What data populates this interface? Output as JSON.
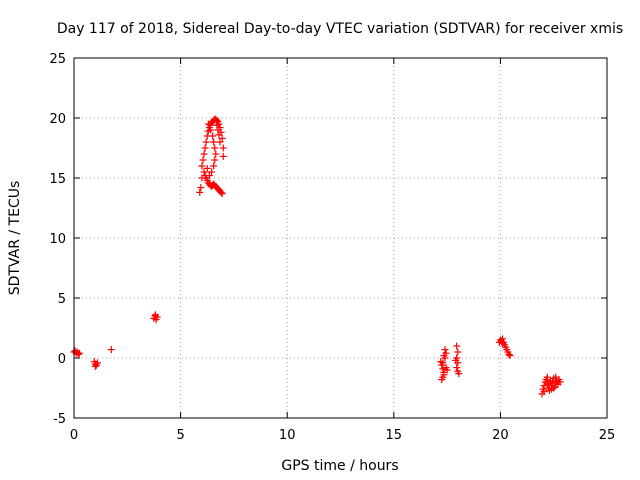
{
  "chart_data": {
    "type": "scatter",
    "title": "Day 117 of 2018, Sidereal Day-to-day VTEC variation (SDTVAR) for receiver xmis",
    "xlabel": "GPS time / hours",
    "ylabel": "SDTVAR / TECUs",
    "xlim": [
      0,
      25
    ],
    "ylim": [
      -5,
      25
    ],
    "xticks": [
      0,
      5,
      10,
      15,
      20,
      25
    ],
    "yticks": [
      -5,
      0,
      5,
      10,
      15,
      20,
      25
    ],
    "grid": true,
    "marker": "+",
    "color": "#ff0000",
    "series": [
      {
        "name": "SDTVAR",
        "points": [
          [
            0.0,
            0.5
          ],
          [
            0.05,
            0.6
          ],
          [
            0.1,
            0.4
          ],
          [
            0.15,
            0.5
          ],
          [
            0.2,
            0.3
          ],
          [
            0.25,
            0.4
          ],
          [
            0.95,
            -0.3
          ],
          [
            1.0,
            -0.5
          ],
          [
            1.05,
            -0.6
          ],
          [
            1.1,
            -0.4
          ],
          [
            1.0,
            -0.7
          ],
          [
            1.75,
            0.7
          ],
          [
            3.75,
            3.3
          ],
          [
            3.8,
            3.5
          ],
          [
            3.85,
            3.2
          ],
          [
            3.9,
            3.4
          ],
          [
            3.82,
            3.6
          ],
          [
            5.9,
            13.8
          ],
          [
            5.95,
            14.2
          ],
          [
            6.0,
            15.0
          ],
          [
            6.0,
            16.0
          ],
          [
            6.05,
            16.5
          ],
          [
            6.1,
            17.0
          ],
          [
            6.15,
            17.5
          ],
          [
            6.2,
            18.0
          ],
          [
            6.25,
            18.5
          ],
          [
            6.3,
            18.9
          ],
          [
            6.35,
            19.2
          ],
          [
            6.4,
            19.4
          ],
          [
            6.45,
            19.6
          ],
          [
            6.5,
            19.7
          ],
          [
            6.55,
            19.8
          ],
          [
            6.6,
            19.9
          ],
          [
            6.65,
            19.9
          ],
          [
            6.7,
            19.8
          ],
          [
            6.75,
            19.7
          ],
          [
            6.8,
            19.5
          ],
          [
            6.85,
            19.2
          ],
          [
            6.9,
            18.8
          ],
          [
            6.95,
            18.3
          ],
          [
            7.0,
            17.5
          ],
          [
            7.0,
            16.8
          ],
          [
            6.1,
            15.5
          ],
          [
            6.15,
            15.2
          ],
          [
            6.2,
            15.0
          ],
          [
            6.25,
            14.8
          ],
          [
            6.3,
            14.6
          ],
          [
            6.35,
            14.5
          ],
          [
            6.4,
            14.4
          ],
          [
            6.45,
            14.3
          ],
          [
            6.5,
            14.4
          ],
          [
            6.55,
            14.5
          ],
          [
            6.6,
            14.4
          ],
          [
            6.65,
            14.3
          ],
          [
            6.7,
            14.2
          ],
          [
            6.75,
            14.1
          ],
          [
            6.8,
            14.0
          ],
          [
            6.85,
            13.9
          ],
          [
            6.9,
            13.8
          ],
          [
            6.95,
            13.7
          ],
          [
            6.3,
            19.5
          ],
          [
            6.4,
            19.0
          ],
          [
            6.5,
            18.5
          ],
          [
            6.55,
            18.0
          ],
          [
            6.6,
            17.5
          ],
          [
            6.65,
            17.0
          ],
          [
            6.6,
            16.5
          ],
          [
            6.55,
            16.0
          ],
          [
            6.45,
            15.5
          ],
          [
            6.35,
            15.2
          ],
          [
            6.25,
            15.8
          ],
          [
            6.7,
            19.4
          ],
          [
            6.75,
            19.0
          ],
          [
            6.8,
            18.6
          ],
          [
            6.85,
            18.0
          ],
          [
            17.2,
            -0.3
          ],
          [
            17.25,
            -0.6
          ],
          [
            17.3,
            -0.9
          ],
          [
            17.35,
            -1.2
          ],
          [
            17.3,
            -1.6
          ],
          [
            17.25,
            -1.8
          ],
          [
            17.4,
            0.0
          ],
          [
            17.45,
            0.4
          ],
          [
            17.4,
            0.7
          ],
          [
            17.35,
            0.2
          ],
          [
            17.3,
            -0.4
          ],
          [
            17.45,
            -0.8
          ],
          [
            17.5,
            -1.0
          ],
          [
            17.35,
            -1.4
          ],
          [
            17.95,
            1.0
          ],
          [
            18.0,
            0.5
          ],
          [
            17.95,
            0.0
          ],
          [
            18.0,
            -0.4
          ],
          [
            17.95,
            -0.8
          ],
          [
            18.0,
            -1.1
          ],
          [
            18.05,
            -1.3
          ],
          [
            17.9,
            -0.2
          ],
          [
            19.95,
            1.3
          ],
          [
            20.0,
            1.5
          ],
          [
            20.05,
            1.4
          ],
          [
            20.1,
            1.2
          ],
          [
            20.15,
            1.3
          ],
          [
            20.2,
            1.1
          ],
          [
            20.25,
            0.9
          ],
          [
            20.3,
            0.7
          ],
          [
            20.35,
            0.5
          ],
          [
            20.4,
            0.3
          ],
          [
            20.45,
            0.2
          ],
          [
            20.1,
            1.6
          ],
          [
            21.95,
            -3.0
          ],
          [
            22.0,
            -2.6
          ],
          [
            22.05,
            -2.3
          ],
          [
            22.1,
            -2.0
          ],
          [
            22.15,
            -1.8
          ],
          [
            22.2,
            -2.2
          ],
          [
            22.25,
            -2.5
          ],
          [
            22.3,
            -2.1
          ],
          [
            22.35,
            -1.9
          ],
          [
            22.4,
            -2.3
          ],
          [
            22.45,
            -2.0
          ],
          [
            22.5,
            -1.7
          ],
          [
            22.55,
            -2.4
          ],
          [
            22.6,
            -2.1
          ],
          [
            22.65,
            -1.9
          ],
          [
            22.7,
            -2.2
          ],
          [
            22.75,
            -1.8
          ],
          [
            22.8,
            -2.0
          ],
          [
            22.05,
            -2.8
          ],
          [
            22.2,
            -1.6
          ],
          [
            22.4,
            -2.6
          ],
          [
            22.6,
            -1.6
          ],
          [
            22.3,
            -2.7
          ],
          [
            22.5,
            -2.5
          ]
        ]
      }
    ]
  }
}
